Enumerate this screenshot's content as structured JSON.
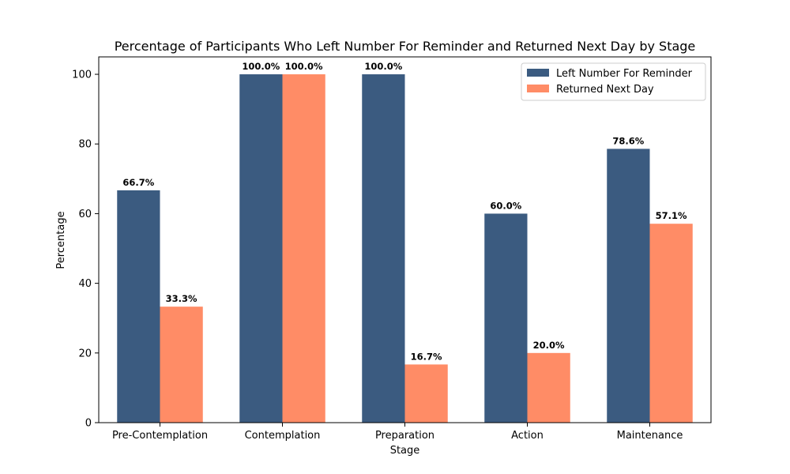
{
  "chart_data": {
    "type": "bar",
    "title": "Percentage of Participants Who Left Number For Reminder and Returned Next Day by Stage",
    "xlabel": "Stage",
    "ylabel": "Percentage",
    "categories": [
      "Pre-Contemplation",
      "Contemplation",
      "Preparation",
      "Action",
      "Maintenance"
    ],
    "series": [
      {
        "name": "Left Number For Reminder",
        "color": "#3b5b80",
        "values": [
          66.7,
          100.0,
          100.0,
          60.0,
          78.6
        ],
        "labels": [
          "66.7%",
          "100.0%",
          "100.0%",
          "60.0%",
          "78.6%"
        ]
      },
      {
        "name": "Returned Next Day",
        "color": "#ff8c66",
        "values": [
          33.3,
          100.0,
          16.7,
          20.0,
          57.1
        ],
        "labels": [
          "33.3%",
          "100.0%",
          "16.7%",
          "20.0%",
          "57.1%"
        ]
      }
    ],
    "ylim": [
      0,
      105
    ],
    "yticks": [
      0,
      20,
      40,
      60,
      80,
      100
    ],
    "legend": "top-right",
    "grid": false
  }
}
